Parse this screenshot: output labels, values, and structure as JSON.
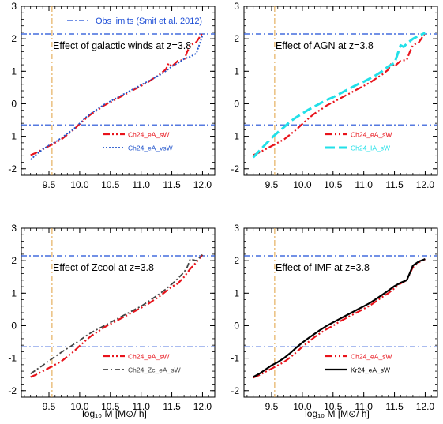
{
  "figure": {
    "xlabel": "log₁₀ M  [M⊙/ h]"
  },
  "chart_data": [
    {
      "type": "line",
      "annotation": "Effect of galactic winds at z=3.8",
      "xlim": [
        9.05,
        12.2
      ],
      "ylim": [
        -2.2,
        3.0
      ],
      "xticks": [
        "9.5",
        "10.0",
        "10.5",
        "11.0",
        "11.5",
        "12.0"
      ],
      "yticks": [
        "-2",
        "-1",
        "0",
        "1",
        "2",
        "3"
      ],
      "obs_limits": {
        "label": "Obs limits (Smit et al. 2012)",
        "y": [
          -0.65,
          2.15
        ],
        "x": 9.55,
        "color": "#1f4fd6",
        "vcolor": "#e0a040"
      },
      "series": [
        {
          "name": "Ch24_eA_sW",
          "color": "#e8131b",
          "style": "dash-dot-dot",
          "width": 2.2,
          "x": [
            9.2,
            9.3,
            9.4,
            9.5,
            9.6,
            9.7,
            9.8,
            9.9,
            10.0,
            10.1,
            10.2,
            10.3,
            10.4,
            10.5,
            10.6,
            10.7,
            10.8,
            10.9,
            11.0,
            11.1,
            11.2,
            11.3,
            11.4,
            11.45,
            11.5,
            11.6,
            11.7,
            11.75,
            11.8,
            11.9,
            12.0
          ],
          "y": [
            -1.58,
            -1.5,
            -1.4,
            -1.3,
            -1.2,
            -1.1,
            -0.95,
            -0.8,
            -0.62,
            -0.45,
            -0.3,
            -0.18,
            -0.05,
            0.05,
            0.15,
            0.25,
            0.35,
            0.45,
            0.55,
            0.65,
            0.78,
            0.9,
            1.05,
            1.25,
            1.15,
            1.32,
            1.35,
            1.6,
            1.8,
            1.9,
            2.18
          ]
        },
        {
          "name": "Ch24_eA_vsW",
          "color": "#2255cc",
          "style": "dotted",
          "width": 1.8,
          "x": [
            9.2,
            9.3,
            9.4,
            9.5,
            9.6,
            9.7,
            9.8,
            9.9,
            10.0,
            10.1,
            10.2,
            10.3,
            10.4,
            10.5,
            10.6,
            10.7,
            10.8,
            10.9,
            11.0,
            11.1,
            11.2,
            11.3,
            11.4,
            11.5,
            11.6,
            11.7,
            11.8,
            11.9,
            12.0
          ],
          "y": [
            -1.72,
            -1.55,
            -1.4,
            -1.28,
            -1.18,
            -1.05,
            -0.92,
            -0.78,
            -0.6,
            -0.42,
            -0.28,
            -0.15,
            -0.02,
            0.08,
            0.18,
            0.28,
            0.38,
            0.48,
            0.58,
            0.68,
            0.78,
            0.88,
            1.0,
            1.15,
            1.25,
            1.38,
            1.45,
            1.55,
            2.1
          ]
        }
      ]
    },
    {
      "type": "line",
      "annotation": "Effect of AGN at z=3.8",
      "xlim": [
        9.05,
        12.2
      ],
      "ylim": [
        -2.2,
        3.0
      ],
      "xticks": [
        "9.5",
        "10.0",
        "10.5",
        "11.0",
        "11.5",
        "12.0"
      ],
      "yticks": [
        "-2",
        "-1",
        "0",
        "1",
        "2",
        "3"
      ],
      "obs_limits": {
        "y": [
          -0.65,
          2.15
        ],
        "x": 9.55,
        "color": "#1f4fd6",
        "vcolor": "#e0a040"
      },
      "series": [
        {
          "name": "Ch24_eA_sW",
          "color": "#e8131b",
          "style": "dash-dot-dot",
          "width": 2.2,
          "x": [
            9.2,
            9.3,
            9.4,
            9.5,
            9.6,
            9.7,
            9.8,
            9.9,
            10.0,
            10.1,
            10.2,
            10.3,
            10.4,
            10.5,
            10.6,
            10.7,
            10.8,
            10.9,
            11.0,
            11.1,
            11.2,
            11.3,
            11.4,
            11.45,
            11.5,
            11.6,
            11.7,
            11.75,
            11.8,
            11.9,
            12.0
          ],
          "y": [
            -1.58,
            -1.5,
            -1.4,
            -1.3,
            -1.2,
            -1.1,
            -0.95,
            -0.8,
            -0.62,
            -0.45,
            -0.3,
            -0.18,
            -0.05,
            0.05,
            0.15,
            0.25,
            0.35,
            0.45,
            0.55,
            0.65,
            0.78,
            0.9,
            1.05,
            1.25,
            1.15,
            1.32,
            1.35,
            1.6,
            1.8,
            1.9,
            2.18
          ]
        },
        {
          "name": "Ch24_IA_sW",
          "color": "#22e0e8",
          "style": "long-dash",
          "width": 3,
          "x": [
            9.2,
            9.3,
            9.4,
            9.5,
            9.6,
            9.7,
            9.8,
            9.9,
            10.0,
            10.1,
            10.2,
            10.3,
            10.4,
            10.5,
            10.6,
            10.7,
            10.8,
            10.9,
            11.0,
            11.1,
            11.2,
            11.3,
            11.4,
            11.5,
            11.6,
            11.65,
            11.7,
            11.8,
            11.9,
            12.0
          ],
          "y": [
            -1.65,
            -1.45,
            -1.25,
            -1.05,
            -0.88,
            -0.72,
            -0.55,
            -0.42,
            -0.3,
            -0.18,
            -0.08,
            0.02,
            0.12,
            0.2,
            0.3,
            0.4,
            0.5,
            0.6,
            0.68,
            0.78,
            0.88,
            1.0,
            1.15,
            1.25,
            1.8,
            1.75,
            1.85,
            2.0,
            2.1,
            2.18
          ]
        }
      ]
    },
    {
      "type": "line",
      "annotation": "Effect of Zcool at z=3.8",
      "xlim": [
        9.05,
        12.2
      ],
      "ylim": [
        -2.2,
        3.0
      ],
      "xticks": [
        "9.5",
        "10.0",
        "10.5",
        "11.0",
        "11.5",
        "12.0"
      ],
      "yticks": [
        "-2",
        "-1",
        "0",
        "1",
        "2",
        "3"
      ],
      "obs_limits": {
        "y": [
          -0.65,
          2.15
        ],
        "x": 9.55,
        "color": "#1f4fd6",
        "vcolor": "#e0a040"
      },
      "series": [
        {
          "name": "Ch24_eA_sW",
          "color": "#e8131b",
          "style": "dash-dot-dot",
          "width": 2.2,
          "x": [
            9.2,
            9.3,
            9.4,
            9.5,
            9.6,
            9.7,
            9.8,
            9.9,
            10.0,
            10.1,
            10.2,
            10.3,
            10.4,
            10.5,
            10.6,
            10.7,
            10.8,
            10.9,
            11.0,
            11.1,
            11.2,
            11.3,
            11.4,
            11.5,
            11.6,
            11.7,
            11.8,
            11.9,
            12.0
          ],
          "y": [
            -1.58,
            -1.5,
            -1.4,
            -1.3,
            -1.2,
            -1.1,
            -0.95,
            -0.8,
            -0.62,
            -0.45,
            -0.3,
            -0.18,
            -0.05,
            0.05,
            0.15,
            0.25,
            0.35,
            0.45,
            0.55,
            0.65,
            0.78,
            0.9,
            1.05,
            1.2,
            1.3,
            1.5,
            1.75,
            1.95,
            2.18
          ]
        },
        {
          "name": "Ch24_Zc_eA_sW",
          "color": "#444444",
          "style": "dash-dot",
          "width": 1.8,
          "x": [
            9.2,
            9.3,
            9.4,
            9.5,
            9.6,
            9.7,
            9.8,
            9.9,
            10.0,
            10.1,
            10.2,
            10.3,
            10.4,
            10.5,
            10.6,
            10.7,
            10.8,
            10.9,
            11.0,
            11.1,
            11.2,
            11.3,
            11.4,
            11.5,
            11.6,
            11.7,
            11.75,
            11.8,
            11.9,
            12.0
          ],
          "y": [
            -1.48,
            -1.35,
            -1.22,
            -1.08,
            -0.95,
            -0.82,
            -0.7,
            -0.58,
            -0.45,
            -0.32,
            -0.2,
            -0.1,
            0.0,
            0.1,
            0.2,
            0.3,
            0.4,
            0.5,
            0.6,
            0.72,
            0.85,
            0.98,
            1.12,
            1.28,
            1.45,
            1.65,
            1.8,
            2.05,
            2.0,
            2.18
          ]
        }
      ]
    },
    {
      "type": "line",
      "annotation": "Effect of IMF at z=3.8",
      "xlim": [
        9.05,
        12.2
      ],
      "ylim": [
        -2.2,
        3.0
      ],
      "xticks": [
        "9.5",
        "10.0",
        "10.5",
        "11.0",
        "11.5",
        "12.0"
      ],
      "yticks": [
        "-2",
        "-1",
        "0",
        "1",
        "2",
        "3"
      ],
      "obs_limits": {
        "y": [
          -0.65,
          2.15
        ],
        "x": 9.55,
        "color": "#1f4fd6",
        "vcolor": "#e0a040"
      },
      "series": [
        {
          "name": "Ch24_eA_sW",
          "color": "#e8131b",
          "style": "dash-dot-dot",
          "width": 2.2,
          "x": [
            9.2,
            9.3,
            9.4,
            9.5,
            9.6,
            9.7,
            9.8,
            9.9,
            10.0,
            10.1,
            10.2,
            10.3,
            10.4,
            10.5,
            10.6,
            10.7,
            10.8,
            10.9,
            11.0,
            11.1,
            11.2,
            11.3,
            11.4,
            11.5,
            11.6,
            11.7,
            11.75,
            11.8,
            11.9,
            12.0
          ],
          "y": [
            -1.6,
            -1.52,
            -1.42,
            -1.32,
            -1.22,
            -1.12,
            -0.98,
            -0.82,
            -0.65,
            -0.5,
            -0.35,
            -0.22,
            -0.1,
            0.0,
            0.12,
            0.22,
            0.32,
            0.42,
            0.52,
            0.62,
            0.75,
            0.88,
            1.0,
            1.15,
            1.3,
            1.4,
            1.6,
            1.8,
            1.95,
            2.05
          ]
        },
        {
          "name": "Kr24_eA_sW",
          "color": "#000000",
          "style": "solid",
          "width": 2.2,
          "x": [
            9.2,
            9.3,
            9.4,
            9.5,
            9.6,
            9.7,
            9.8,
            9.9,
            10.0,
            10.1,
            10.2,
            10.3,
            10.4,
            10.5,
            10.6,
            10.7,
            10.8,
            10.9,
            11.0,
            11.1,
            11.2,
            11.3,
            11.4,
            11.5,
            11.6,
            11.7,
            11.75,
            11.8,
            11.9,
            12.0
          ],
          "y": [
            -1.58,
            -1.48,
            -1.35,
            -1.22,
            -1.12,
            -1.0,
            -0.85,
            -0.68,
            -0.52,
            -0.38,
            -0.25,
            -0.12,
            0.0,
            0.1,
            0.2,
            0.3,
            0.4,
            0.5,
            0.6,
            0.7,
            0.82,
            0.95,
            1.08,
            1.22,
            1.32,
            1.4,
            1.62,
            1.85,
            1.98,
            2.05
          ]
        }
      ]
    }
  ]
}
